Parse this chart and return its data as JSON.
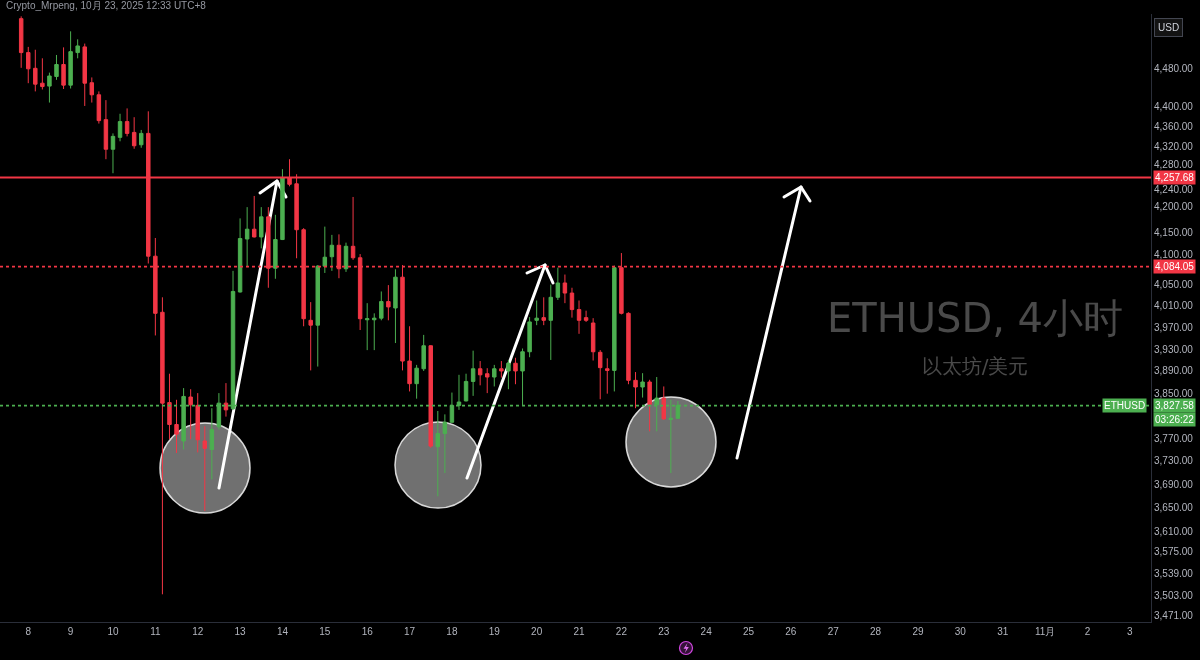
{
  "chart_data": {
    "type": "candlestick",
    "title": "ETHUSD, 4小时",
    "subtitle": "以太坊/美元",
    "annotations": [
      "Crypto_Mrpeng, 10月 23, 2025 12:33 UTC+8",
      "USD",
      {
        "text": "ETHUSD",
        "y": 3827.58
      },
      {
        "text": "03:26:22",
        "y": 3827.58
      }
    ],
    "x": [
      "2025-10-07T20:00",
      "2025-10-08T00:00",
      "2025-10-08T04:00",
      "2025-10-08T08:00",
      "2025-10-08T12:00",
      "2025-10-08T16:00",
      "2025-10-08T20:00",
      "2025-10-09T00:00",
      "2025-10-09T04:00",
      "2025-10-09T08:00",
      "2025-10-09T12:00",
      "2025-10-09T16:00",
      "2025-10-09T20:00",
      "2025-10-10T00:00",
      "2025-10-10T04:00",
      "2025-10-10T08:00",
      "2025-10-10T12:00",
      "2025-10-10T16:00",
      "2025-10-10T20:00",
      "2025-10-11T00:00",
      "2025-10-11T04:00",
      "2025-10-11T08:00",
      "2025-10-11T12:00",
      "2025-10-11T16:00",
      "2025-10-11T20:00",
      "2025-10-12T00:00",
      "2025-10-12T04:00",
      "2025-10-12T08:00",
      "2025-10-12T12:00",
      "2025-10-12T16:00",
      "2025-10-12T20:00",
      "2025-10-13T00:00",
      "2025-10-13T04:00",
      "2025-10-13T08:00",
      "2025-10-13T12:00",
      "2025-10-13T16:00",
      "2025-10-13T20:00",
      "2025-10-14T00:00",
      "2025-10-14T04:00",
      "2025-10-14T08:00",
      "2025-10-14T12:00",
      "2025-10-14T16:00",
      "2025-10-14T20:00",
      "2025-10-15T00:00",
      "2025-10-15T04:00",
      "2025-10-15T08:00",
      "2025-10-15T12:00",
      "2025-10-15T16:00",
      "2025-10-15T20:00",
      "2025-10-16T00:00",
      "2025-10-16T04:00",
      "2025-10-16T08:00",
      "2025-10-16T12:00",
      "2025-10-16T16:00",
      "2025-10-16T20:00",
      "2025-10-17T00:00",
      "2025-10-17T04:00",
      "2025-10-17T08:00",
      "2025-10-17T12:00",
      "2025-10-17T16:00",
      "2025-10-17T20:00",
      "2025-10-18T00:00",
      "2025-10-18T04:00",
      "2025-10-18T08:00",
      "2025-10-18T12:00",
      "2025-10-18T16:00",
      "2025-10-18T20:00",
      "2025-10-19T00:00",
      "2025-10-19T04:00",
      "2025-10-19T08:00",
      "2025-10-19T12:00",
      "2025-10-19T16:00",
      "2025-10-19T20:00",
      "2025-10-20T00:00",
      "2025-10-20T04:00",
      "2025-10-20T08:00",
      "2025-10-20T12:00",
      "2025-10-20T16:00",
      "2025-10-20T20:00",
      "2025-10-21T00:00",
      "2025-10-21T04:00",
      "2025-10-21T08:00",
      "2025-10-21T12:00",
      "2025-10-21T16:00",
      "2025-10-21T20:00",
      "2025-10-22T00:00",
      "2025-10-22T04:00",
      "2025-10-22T08:00",
      "2025-10-22T12:00",
      "2025-10-22T16:00",
      "2025-10-22T20:00",
      "2025-10-23T00:00",
      "2025-10-23T04:00",
      "2025-10-23T08:00"
    ],
    "ohlc": [
      [
        4585,
        4590,
        4481,
        4513
      ],
      [
        4513,
        4525,
        4449,
        4479
      ],
      [
        4480,
        4519,
        4432,
        4447
      ],
      [
        4449,
        4501,
        4436,
        4442
      ],
      [
        4443,
        4471,
        4409,
        4464
      ],
      [
        4463,
        4508,
        4456,
        4488
      ],
      [
        4488,
        4524,
        4437,
        4445
      ],
      [
        4445,
        4558,
        4438,
        4515
      ],
      [
        4513,
        4541,
        4501,
        4527
      ],
      [
        4525,
        4532,
        4402,
        4449
      ],
      [
        4450,
        4461,
        4409,
        4425
      ],
      [
        4425,
        4432,
        4366,
        4372
      ],
      [
        4374,
        4414,
        4294,
        4314
      ],
      [
        4314,
        4346,
        4266,
        4340
      ],
      [
        4338,
        4386,
        4330,
        4370
      ],
      [
        4370,
        4397,
        4340,
        4346
      ],
      [
        4348,
        4379,
        4315,
        4321
      ],
      [
        4323,
        4353,
        4317,
        4346
      ],
      [
        4346,
        4391,
        4090,
        4104
      ],
      [
        4104,
        4139,
        3955,
        3996
      ],
      [
        3998,
        4026,
        3505,
        3832
      ],
      [
        3833,
        3885,
        3768,
        3794
      ],
      [
        3794,
        3838,
        3744,
        3777
      ],
      [
        3765,
        3859,
        3750,
        3844
      ],
      [
        3843,
        3857,
        3768,
        3829
      ],
      [
        3828,
        3850,
        3745,
        3767
      ],
      [
        3765,
        3791,
        3644,
        3752
      ],
      [
        3750,
        3823,
        3698,
        3785
      ],
      [
        3790,
        3850,
        3785,
        3832
      ],
      [
        3832,
        3868,
        3808,
        3820
      ],
      [
        3822,
        4076,
        3820,
        4037
      ],
      [
        4036,
        4177,
        4035,
        4138
      ],
      [
        4137,
        4199,
        4083,
        4156
      ],
      [
        4156,
        4221,
        4140,
        4141
      ],
      [
        4141,
        4199,
        4119,
        4180
      ],
      [
        4180,
        4199,
        4044,
        4081
      ],
      [
        4081,
        4184,
        4061,
        4136
      ],
      [
        4136,
        4274,
        4135,
        4257
      ],
      [
        4257,
        4294,
        4240,
        4244
      ],
      [
        4245,
        4264,
        4100,
        4155
      ],
      [
        4155,
        4158,
        3972,
        3986
      ],
      [
        3983,
        4017,
        3891,
        3974
      ],
      [
        3974,
        4087,
        3898,
        4085
      ],
      [
        4085,
        4161,
        4072,
        4102
      ],
      [
        4103,
        4145,
        4076,
        4125
      ],
      [
        4125,
        4146,
        4062,
        4080
      ],
      [
        4080,
        4130,
        4074,
        4123
      ],
      [
        4123,
        4219,
        4097,
        4101
      ],
      [
        4101,
        4108,
        3965,
        3986
      ],
      [
        3984,
        4015,
        3928,
        3986
      ],
      [
        3984,
        3996,
        3928,
        3987
      ],
      [
        3987,
        4037,
        3983,
        4018
      ],
      [
        4018,
        4049,
        3983,
        4008
      ],
      [
        4006,
        4079,
        3941,
        4064
      ],
      [
        4064,
        4087,
        3891,
        3908
      ],
      [
        3908,
        3972,
        3853,
        3867
      ],
      [
        3867,
        3901,
        3840,
        3895
      ],
      [
        3894,
        3956,
        3890,
        3936
      ],
      [
        3936,
        3937,
        3753,
        3756
      ],
      [
        3755,
        3818,
        3669,
        3778
      ],
      [
        3778,
        3812,
        3709,
        3798
      ],
      [
        3798,
        3851,
        3797,
        3828
      ],
      [
        3828,
        3883,
        3820,
        3834
      ],
      [
        3836,
        3885,
        3835,
        3871
      ],
      [
        3871,
        3927,
        3845,
        3894
      ],
      [
        3894,
        3908,
        3864,
        3883
      ],
      [
        3885,
        3895,
        3850,
        3879
      ],
      [
        3879,
        3901,
        3862,
        3894
      ],
      [
        3894,
        3908,
        3878,
        3890
      ],
      [
        3890,
        3910,
        3857,
        3904
      ],
      [
        3904,
        3914,
        3866,
        3890
      ],
      [
        3890,
        3931,
        3827,
        3925
      ],
      [
        3925,
        3989,
        3915,
        3980
      ],
      [
        3983,
        4020,
        3974,
        3987
      ],
      [
        3988,
        4026,
        3974,
        3983
      ],
      [
        3983,
        4050,
        3910,
        4026
      ],
      [
        4026,
        4082,
        4021,
        4053
      ],
      [
        4053,
        4069,
        4015,
        4034
      ],
      [
        4034,
        4044,
        3988,
        4003
      ],
      [
        4003,
        4020,
        3958,
        3983
      ],
      [
        3988,
        4001,
        3980,
        3983
      ],
      [
        3978,
        3987,
        3909,
        3925
      ],
      [
        3924,
        3928,
        3839,
        3896
      ],
      [
        3894,
        3913,
        3849,
        3891
      ],
      [
        3891,
        4086,
        3853,
        4082
      ],
      [
        4082,
        4110,
        3994,
        3996
      ],
      [
        3996,
        3998,
        3866,
        3873
      ],
      [
        3873,
        3888,
        3823,
        3861
      ],
      [
        3861,
        3886,
        3842,
        3870
      ],
      [
        3870,
        3874,
        3782,
        3830
      ],
      [
        3829,
        3879,
        3782,
        3841
      ],
      [
        3841,
        3862,
        3802,
        3804
      ],
      [
        3803,
        3838,
        3709,
        3805
      ],
      [
        3805,
        3836,
        3804,
        3828
      ]
    ],
    "colors": [
      "#f23645",
      "#f23645",
      "#f23645",
      "#f23645",
      "#4caf50",
      "#4caf50",
      "#f23645",
      "#4caf50",
      "#4caf50",
      "#f23645",
      "#f23645",
      "#f23645",
      "#f23645",
      "#4caf50",
      "#4caf50",
      "#f23645",
      "#f23645",
      "#4caf50",
      "#f23645",
      "#f23645",
      "#f23645",
      "#f23645",
      "#f23645",
      "#4caf50",
      "#f23645",
      "#f23645",
      "#f23645",
      "#4caf50",
      "#4caf50",
      "#f23645",
      "#4caf50",
      "#4caf50",
      "#4caf50",
      "#f23645",
      "#4caf50",
      "#f23645",
      "#4caf50",
      "#4caf50",
      "#f23645",
      "#f23645",
      "#f23645",
      "#f23645",
      "#4caf50",
      "#4caf50",
      "#4caf50",
      "#f23645",
      "#4caf50",
      "#f23645",
      "#f23645",
      "#4caf50",
      "#4caf50",
      "#4caf50",
      "#f23645",
      "#4caf50",
      "#f23645",
      "#f23645",
      "#4caf50",
      "#4caf50",
      "#f23645",
      "#4caf50",
      "#4caf50",
      "#4caf50",
      "#4caf50",
      "#4caf50",
      "#4caf50",
      "#f23645",
      "#f23645",
      "#4caf50",
      "#f23645",
      "#4caf50",
      "#f23645",
      "#4caf50",
      "#4caf50",
      "#4caf50",
      "#f23645",
      "#4caf50",
      "#4caf50",
      "#f23645",
      "#f23645",
      "#f23645",
      "#f23645",
      "#f23645",
      "#f23645",
      "#f23645",
      "#4caf50",
      "#f23645",
      "#f23645",
      "#f23645",
      "#4caf50",
      "#f23645",
      "#4caf50",
      "#f23645",
      "#4caf50",
      "#4caf50"
    ],
    "xlim": [
      "2025-10-07T08:00",
      "2025-11-03T12:00"
    ],
    "xticks": [
      {
        "value": "2025-10-08",
        "label": "8"
      },
      {
        "value": "2025-10-09",
        "label": "9"
      },
      {
        "value": "2025-10-10",
        "label": "10"
      },
      {
        "value": "2025-10-11",
        "label": "11"
      },
      {
        "value": "2025-10-12",
        "label": "12"
      },
      {
        "value": "2025-10-13",
        "label": "13"
      },
      {
        "value": "2025-10-14",
        "label": "14"
      },
      {
        "value": "2025-10-15",
        "label": "15"
      },
      {
        "value": "2025-10-16",
        "label": "16"
      },
      {
        "value": "2025-10-17",
        "label": "17"
      },
      {
        "value": "2025-10-18",
        "label": "18"
      },
      {
        "value": "2025-10-19",
        "label": "19"
      },
      {
        "value": "2025-10-20",
        "label": "20"
      },
      {
        "value": "2025-10-21",
        "label": "21"
      },
      {
        "value": "2025-10-22",
        "label": "22"
      },
      {
        "value": "2025-10-23",
        "label": "23"
      },
      {
        "value": "2025-10-24",
        "label": "24"
      },
      {
        "value": "2025-10-25",
        "label": "25"
      },
      {
        "value": "2025-10-26",
        "label": "26"
      },
      {
        "value": "2025-10-27",
        "label": "27"
      },
      {
        "value": "2025-10-28",
        "label": "28"
      },
      {
        "value": "2025-10-29",
        "label": "29"
      },
      {
        "value": "2025-10-30",
        "label": "30"
      },
      {
        "value": "2025-10-31",
        "label": "31"
      },
      {
        "value": "2025-11-01",
        "label": "11月"
      },
      {
        "value": "2025-11-02",
        "label": "2"
      },
      {
        "value": "2025-11-03",
        "label": "3"
      }
    ],
    "ylim": [
      3460,
      4595
    ],
    "yticks": [
      {
        "value": 3471,
        "label": "3,471.00"
      },
      {
        "value": 3503,
        "label": "3,503.00"
      },
      {
        "value": 3539,
        "label": "3,539.00"
      },
      {
        "value": 3575,
        "label": "3,575.00"
      },
      {
        "value": 3610,
        "label": "3,610.00"
      },
      {
        "value": 3650,
        "label": "3,650.00"
      },
      {
        "value": 3690,
        "label": "3,690.00"
      },
      {
        "value": 3730,
        "label": "3,730.00"
      },
      {
        "value": 3770,
        "label": "3,770.00"
      },
      {
        "value": 3850,
        "label": "3,850.00"
      },
      {
        "value": 3890,
        "label": "3,890.00"
      },
      {
        "value": 3930,
        "label": "3,930.00"
      },
      {
        "value": 3970,
        "label": "3,970.00"
      },
      {
        "value": 4010,
        "label": "4,010.00"
      },
      {
        "value": 4050,
        "label": "4,050.00"
      },
      {
        "value": 4100,
        "label": "4,100.00"
      },
      {
        "value": 4150,
        "label": "4,150.00"
      },
      {
        "value": 4200,
        "label": "4,200.00"
      },
      {
        "value": 4240,
        "label": "4,240.00"
      },
      {
        "value": 4280,
        "label": "4,280.00"
      },
      {
        "value": 4320,
        "label": "4,320.00"
      },
      {
        "value": 4360,
        "label": "4,360.00"
      },
      {
        "value": 4400,
        "label": "4,400.00"
      },
      {
        "value": 4480,
        "label": "4,480.00"
      }
    ],
    "log": "y",
    "ref_lines": [
      {
        "axis": "y",
        "value": 4257.68,
        "label": "4,257.68",
        "color": "#f23645",
        "line_style": "solid"
      },
      {
        "axis": "y",
        "value": 4084.05,
        "label": "4,084.05",
        "color": "#f23645",
        "line_style": "dotted"
      },
      {
        "axis": "y",
        "value": 3827.58,
        "label": "3,827.58",
        "color": "#4caf50",
        "line_style": "dotted"
      }
    ]
  }
}
